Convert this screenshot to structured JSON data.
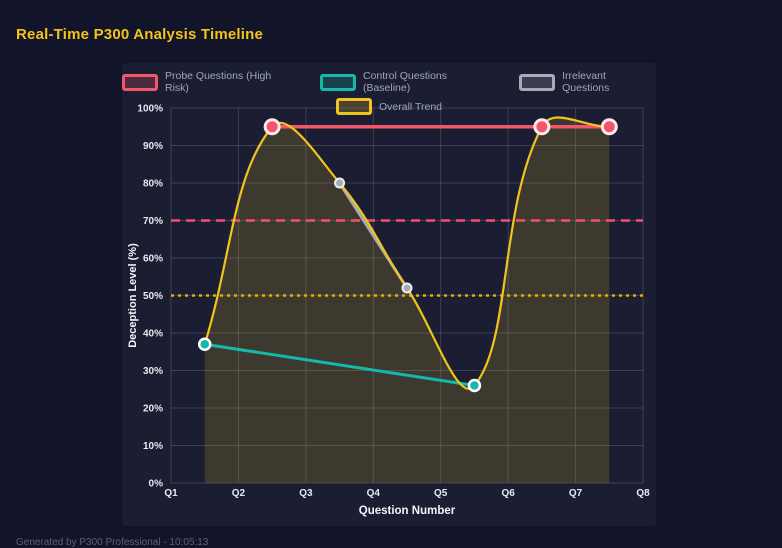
{
  "page": {
    "footer": "Generated by P300 Professional - 10:05:13"
  },
  "chart_data": {
    "type": "line",
    "title": "Real-Time P300 Analysis Timeline",
    "xlabel": "Question Number",
    "ylabel": "Deception Level (%)",
    "x_ticks": [
      "Q1",
      "Q2",
      "Q3",
      "Q4",
      "Q5",
      "Q6",
      "Q7",
      "Q8"
    ],
    "x_range": [
      1,
      8
    ],
    "y_range": [
      0,
      100
    ],
    "y_tick_step": 10,
    "y_tick_suffix": "%",
    "grid": true,
    "legend_position": "top",
    "colors": {
      "background": "#12152a",
      "panel": "#1b1e32",
      "grid": "rgba(210,216,232,0.18)",
      "tick_text": "#e6e9f2",
      "axis_title_text": "#f2f4fa",
      "legend_text": "#9fa6ba",
      "title_text": "#f2c31c",
      "footer_text": "#596078"
    },
    "series": [
      {
        "id": "probe",
        "name": "Probe Questions (High Risk)",
        "color": "#f3566a",
        "points": [
          [
            2.5,
            95
          ],
          [
            6.5,
            95
          ],
          [
            7.5,
            95
          ]
        ],
        "line_width": 3.5,
        "point_radius": 7,
        "point_border": "#ffe9eb",
        "point_border_width": 3,
        "smooth": false,
        "fill": false
      },
      {
        "id": "control",
        "name": "Control Questions (Baseline)",
        "color": "#16b8ac",
        "points": [
          [
            1.5,
            37
          ],
          [
            5.5,
            26
          ]
        ],
        "line_width": 3,
        "point_radius": 5.5,
        "point_border": "#ffffff",
        "point_border_width": 2.5,
        "smooth": false,
        "fill": false
      },
      {
        "id": "irrelevant",
        "name": "Irrelevant Questions",
        "color": "#a7abb5",
        "points": [
          [
            3.5,
            80
          ],
          [
            4.5,
            52
          ]
        ],
        "line_width": 3,
        "point_radius": 4.5,
        "point_border": "#eceef2",
        "point_border_width": 2,
        "smooth": false,
        "fill": false
      },
      {
        "id": "trend",
        "name": "Overall Trend",
        "color": "#f0c41f",
        "points": [
          [
            1.5,
            37
          ],
          [
            2.5,
            95
          ],
          [
            3.5,
            80
          ],
          [
            4.5,
            52
          ],
          [
            5.5,
            26
          ],
          [
            6.5,
            95
          ],
          [
            7.5,
            95
          ]
        ],
        "line_width": 2.2,
        "point_radius": 0,
        "smooth": true,
        "tension": 0.4,
        "fill": true,
        "fill_color": "rgba(240,196,31,0.16)"
      }
    ],
    "thresholds": [
      {
        "value": 70,
        "color": "#f3506e",
        "dash": "9 6",
        "width": 2.4
      },
      {
        "value": 50,
        "color": "#e0ae00",
        "dash": "3 4",
        "width": 2.4
      }
    ],
    "legend_rows": [
      [
        "probe",
        "control",
        "irrelevant"
      ],
      [
        "trend"
      ]
    ]
  }
}
